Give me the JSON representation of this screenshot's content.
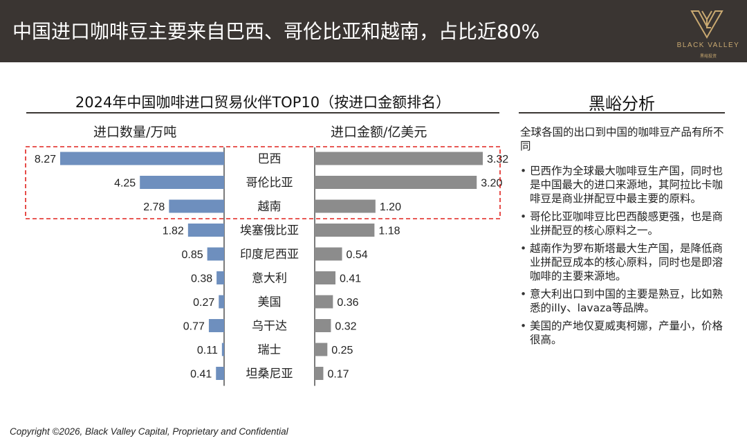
{
  "header": {
    "title": "中国进口咖啡豆主要来自巴西、哥伦比亚和越南，占比近80%",
    "logo_text": "BLACK VALLEY",
    "logo_sub": "黑峪投资"
  },
  "chart_data": {
    "type": "bar",
    "title": "2024年中国咖啡进口贸易伙伴TOP10（按进口金额排名）",
    "left_label": "进口数量/万吨",
    "right_label": "进口金额/亿美元",
    "categories": [
      "巴西",
      "哥伦比亚",
      "越南",
      "埃塞俄比亚",
      "印度尼西亚",
      "意大利",
      "美国",
      "乌干达",
      "瑞士",
      "坦桑尼亚"
    ],
    "series": [
      {
        "name": "进口数量/万吨",
        "values": [
          8.27,
          4.25,
          2.78,
          1.82,
          0.85,
          0.38,
          0.27,
          0.77,
          0.11,
          0.41
        ],
        "labels": [
          "8.27",
          "4.25",
          "2.78",
          "1.82",
          "0.85",
          "0.38",
          "0.27",
          "0.77",
          "0.11",
          "0.41"
        ],
        "color": "#6e8fbe"
      },
      {
        "name": "进口金额/亿美元",
        "values": [
          3.32,
          3.2,
          1.2,
          1.18,
          0.54,
          0.41,
          0.36,
          0.32,
          0.25,
          0.17
        ],
        "labels": [
          "3.32",
          "3.20",
          "1.20",
          "1.18",
          "0.54",
          "0.41",
          "0.36",
          "0.32",
          "0.25",
          "0.17"
        ],
        "color": "#8c8c8c"
      }
    ],
    "highlight_count": 3,
    "highlight_color": "#e0201c"
  },
  "analysis": {
    "title": "黑峪分析",
    "intro": "全球各国的出口到中国的咖啡豆产品有所不同",
    "bullets": [
      "巴西作为全球最大咖啡豆生产国，同时也是中国最大的进口来源地，其阿拉比卡咖啡豆是商业拼配豆中最主要的原料。",
      "哥伦比亚咖啡豆比巴西酸感更强，也是商业拼配豆的核心原料之一。",
      "越南作为罗布斯塔最大生产国，是降低商业拼配豆成本的核心原料，同时也是即溶咖啡的主要来源地。",
      "意大利出口到中国的主要是熟豆，比如熟悉的illy、lavaza等品牌。",
      "美国的产地仅夏威夷柯娜，产量小，价格很高。"
    ]
  },
  "footer": "Copyright ©2026, Black Valley Capital, Proprietary and Confidential"
}
